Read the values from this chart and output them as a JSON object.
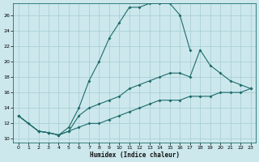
{
  "xlabel": "Humidex (Indice chaleur)",
  "bg_color": "#cce8ec",
  "grid_color": "#aad0d8",
  "line_color": "#1e6b6b",
  "xlim": [
    -0.5,
    23.5
  ],
  "ylim": [
    9.5,
    27.5
  ],
  "xticks": [
    0,
    1,
    2,
    3,
    4,
    5,
    6,
    7,
    8,
    9,
    10,
    11,
    12,
    13,
    14,
    15,
    16,
    17,
    18,
    19,
    20,
    21,
    22,
    23
  ],
  "yticks": [
    10,
    12,
    14,
    16,
    18,
    20,
    22,
    24,
    26
  ],
  "curve1_x": [
    0,
    1,
    2,
    3,
    4,
    5,
    6,
    7,
    8,
    9,
    10,
    11,
    12,
    13,
    14,
    15,
    16,
    17
  ],
  "curve1_y": [
    13,
    12,
    11,
    10.8,
    10.5,
    11.5,
    14,
    17.5,
    20,
    23,
    25,
    27,
    27,
    27.5,
    27.5,
    27.5,
    26,
    21.5
  ],
  "curve2_x": [
    0,
    2,
    3,
    4,
    5,
    6,
    7,
    8,
    9,
    10,
    11,
    12,
    13,
    14,
    15,
    16,
    17,
    18,
    19,
    20,
    21,
    22,
    23
  ],
  "curve2_y": [
    13,
    11,
    10.8,
    10.5,
    11,
    13,
    14,
    14.5,
    15,
    15.5,
    16.5,
    17,
    17.5,
    18,
    18.5,
    18.5,
    18,
    21.5,
    19.5,
    18.5,
    17.5,
    17,
    16.5
  ],
  "curve3_x": [
    0,
    2,
    3,
    4,
    5,
    6,
    7,
    8,
    9,
    10,
    11,
    12,
    13,
    14,
    15,
    16,
    17,
    18,
    19,
    20,
    21,
    22,
    23
  ],
  "curve3_y": [
    13,
    11,
    10.8,
    10.5,
    11,
    11.5,
    12,
    12,
    12.5,
    13,
    13.5,
    14,
    14.5,
    15,
    15,
    15,
    15.5,
    15.5,
    15.5,
    16,
    16,
    16,
    16.5
  ]
}
